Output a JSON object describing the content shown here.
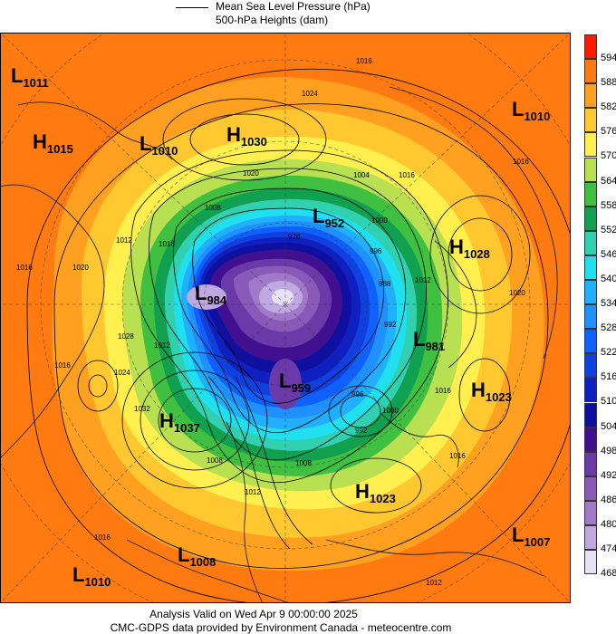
{
  "legend": {
    "line1": "Mean Sea Level Pressure (hPa)",
    "line2": "500-hPa Heights (dam)"
  },
  "colorbar": {
    "labels": [
      "594",
      "588",
      "582",
      "576",
      "570",
      "564",
      "558",
      "552",
      "546",
      "540",
      "534",
      "528",
      "522",
      "516",
      "510",
      "504",
      "498",
      "492",
      "486",
      "480",
      "474",
      "468"
    ],
    "colors": [
      "#ff1a00",
      "#ff7a10",
      "#ffa020",
      "#ffc830",
      "#fff050",
      "#b8e050",
      "#40c040",
      "#10a050",
      "#30d0b0",
      "#20e0f0",
      "#20b0ff",
      "#2090ff",
      "#1060ff",
      "#1040e0",
      "#1020c0",
      "#1010a0",
      "#401090",
      "#6a3aa8",
      "#8a5ab8",
      "#a07ac8",
      "#c0a8e0",
      "#e8e0f4"
    ]
  },
  "systems": [
    {
      "type": "L",
      "value": "1011"
    },
    {
      "type": "H",
      "value": "1015"
    },
    {
      "type": "L",
      "value": "1010"
    },
    {
      "type": "H",
      "value": "1030"
    },
    {
      "type": "L",
      "value": "1010"
    },
    {
      "type": "L",
      "value": "952"
    },
    {
      "type": "H",
      "value": "1028"
    },
    {
      "type": "L",
      "value": "984"
    },
    {
      "type": "L",
      "value": "981"
    },
    {
      "type": "L",
      "value": "959"
    },
    {
      "type": "H",
      "value": "1023"
    },
    {
      "type": "H",
      "value": "1037"
    },
    {
      "type": "H",
      "value": "1023"
    },
    {
      "type": "L",
      "value": "1007"
    },
    {
      "type": "L",
      "value": "1008"
    },
    {
      "type": "L",
      "value": "1010"
    }
  ],
  "isobar_labels": [
    "1016",
    "1024",
    "1016",
    "1012",
    "1016",
    "1020",
    "1008",
    "1004",
    "1000",
    "996",
    "988",
    "976",
    "992",
    "1016",
    "1012",
    "1020",
    "1016",
    "1012",
    "1020",
    "1028",
    "1024",
    "1032",
    "1016",
    "1016",
    "996",
    "992",
    "1000",
    "1008",
    "1016",
    "1012",
    "1012",
    "1008",
    "1016"
  ],
  "footer": {
    "line1": "Analysis Valid on Wed Apr  9 00:00:00 2025",
    "line2": "CMC-GDPS data provided by Environment Canada - meteocentre.com"
  }
}
